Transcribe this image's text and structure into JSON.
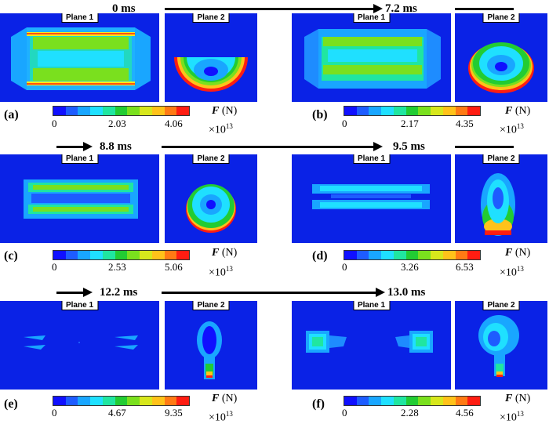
{
  "colorbar_colors": [
    "#1010ff",
    "#1e5cff",
    "#19a6ff",
    "#1fe0ff",
    "#20e6a0",
    "#22cc33",
    "#7ae01e",
    "#d7e71c",
    "#ffc21a",
    "#ff7a14",
    "#ff1d12"
  ],
  "plane1_label": "Plane 1",
  "plane2_label": "Plane 2",
  "force_symbol": "F",
  "force_unit": "(N)",
  "multiplier_base": "×10",
  "multiplier_exp": "13",
  "panels": [
    {
      "label": "(a)",
      "time": "0 ms",
      "ticks": [
        "0",
        "2.03",
        "4.06"
      ]
    },
    {
      "label": "(b)",
      "time": "7.2 ms",
      "ticks": [
        "0",
        "2.17",
        "4.35"
      ]
    },
    {
      "label": "(c)",
      "time": "8.8 ms",
      "ticks": [
        "0",
        "2.53",
        "5.06"
      ]
    },
    {
      "label": "(d)",
      "time": "9.5 ms",
      "ticks": [
        "0",
        "3.26",
        "6.53"
      ]
    },
    {
      "label": "(e)",
      "time": "12.2 ms",
      "ticks": [
        "0",
        "4.67",
        "9.35"
      ]
    },
    {
      "label": "(f)",
      "time": "13.0 ms",
      "ticks": [
        "0",
        "2.28",
        "4.56"
      ]
    }
  ]
}
